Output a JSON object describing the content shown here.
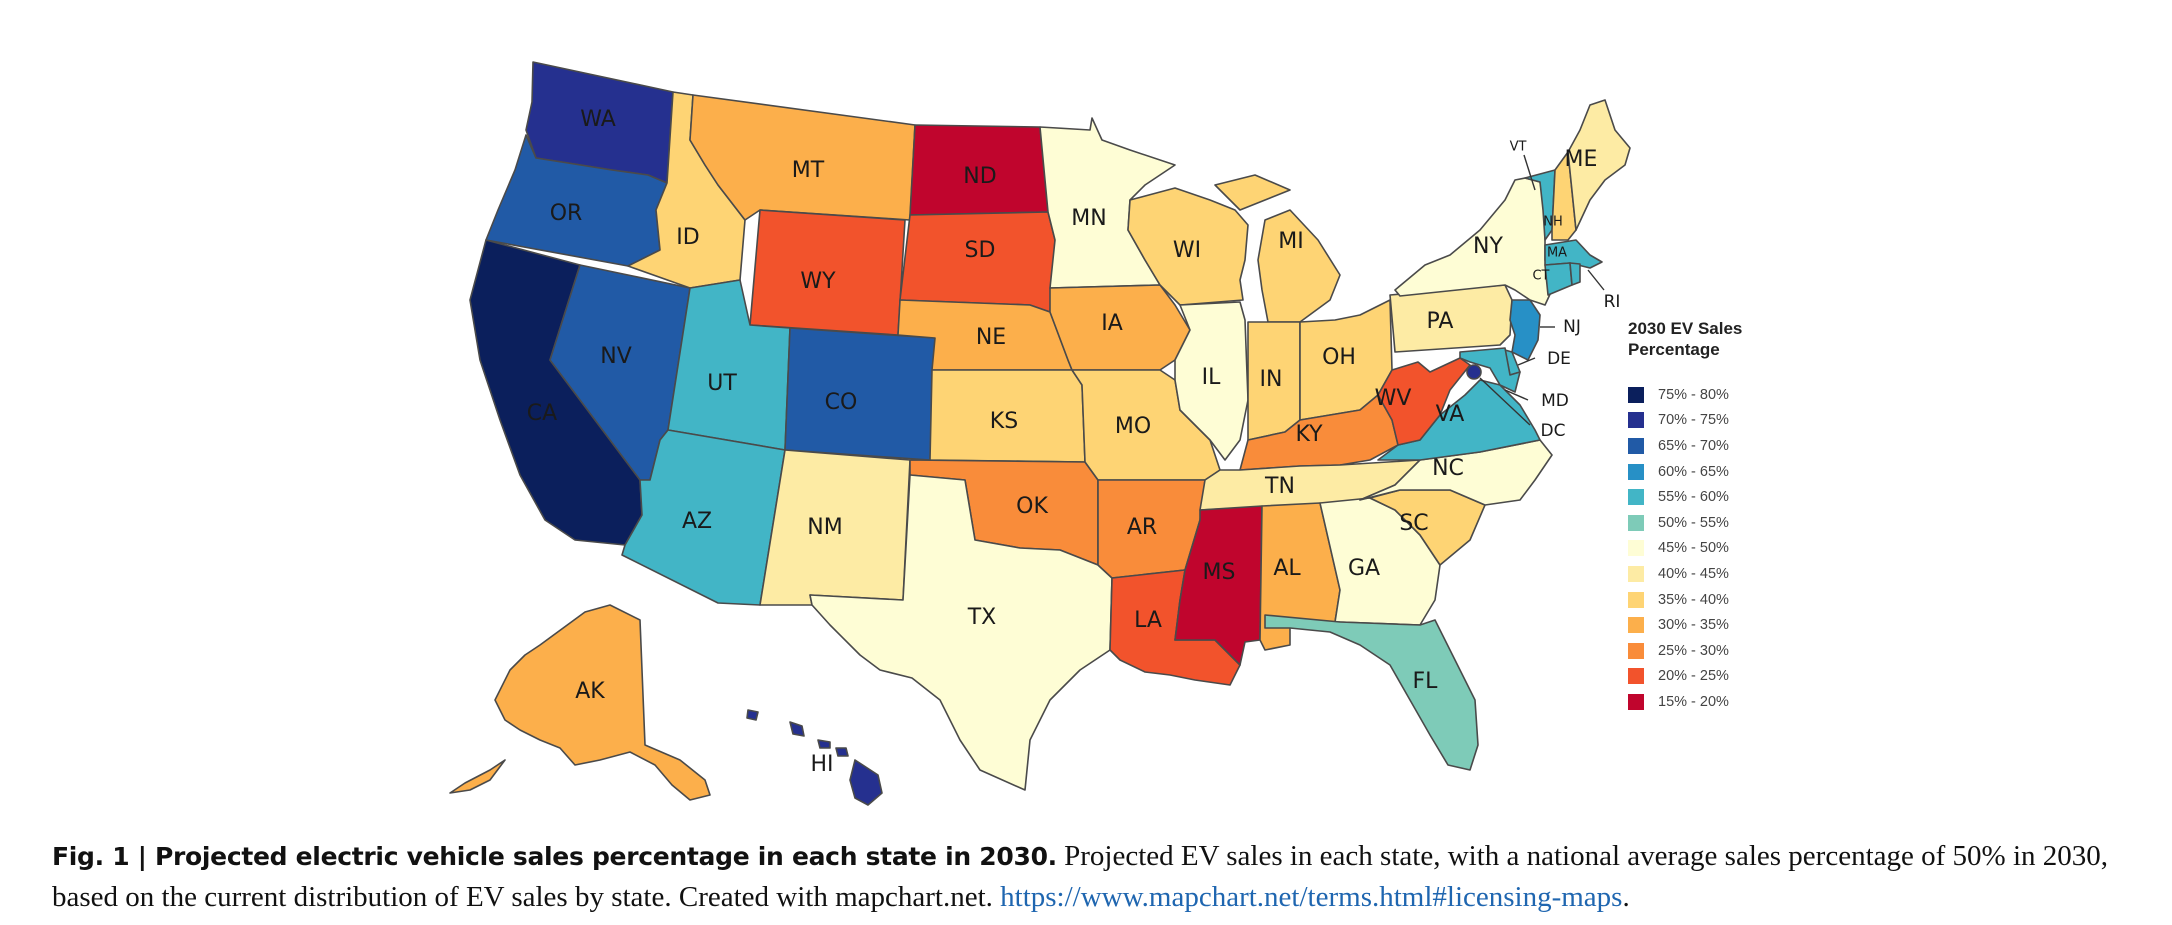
{
  "legend": {
    "title": "2030 EV Sales Percentage",
    "bins": [
      {
        "label": "75% - 80%",
        "color": "#0b1f5c"
      },
      {
        "label": "70% - 75%",
        "color": "#25308f"
      },
      {
        "label": "65% - 70%",
        "color": "#215aa6"
      },
      {
        "label": "60% - 65%",
        "color": "#2790c6"
      },
      {
        "label": "55% - 60%",
        "color": "#42b5c6"
      },
      {
        "label": "50% - 55%",
        "color": "#7ecbb8"
      },
      {
        "label": "45% - 50%",
        "color": "#fefdd5"
      },
      {
        "label": "40% - 45%",
        "color": "#fdeba4"
      },
      {
        "label": "35% - 40%",
        "color": "#fed474"
      },
      {
        "label": "30% - 35%",
        "color": "#fcaf4b"
      },
      {
        "label": "25% - 30%",
        "color": "#f98c3a"
      },
      {
        "label": "20% - 25%",
        "color": "#f2532c"
      },
      {
        "label": "15% - 20%",
        "color": "#c0052d"
      }
    ]
  },
  "states": [
    {
      "abbr": "WA",
      "bin": "70% - 75%"
    },
    {
      "abbr": "OR",
      "bin": "65% - 70%"
    },
    {
      "abbr": "CA",
      "bin": "75% - 80%"
    },
    {
      "abbr": "NV",
      "bin": "65% - 70%"
    },
    {
      "abbr": "ID",
      "bin": "35% - 40%"
    },
    {
      "abbr": "MT",
      "bin": "30% - 35%"
    },
    {
      "abbr": "WY",
      "bin": "20% - 25%"
    },
    {
      "abbr": "UT",
      "bin": "55% - 60%"
    },
    {
      "abbr": "CO",
      "bin": "65% - 70%"
    },
    {
      "abbr": "AZ",
      "bin": "55% - 60%"
    },
    {
      "abbr": "NM",
      "bin": "40% - 45%"
    },
    {
      "abbr": "ND",
      "bin": "15% - 20%"
    },
    {
      "abbr": "SD",
      "bin": "20% - 25%"
    },
    {
      "abbr": "NE",
      "bin": "30% - 35%"
    },
    {
      "abbr": "KS",
      "bin": "35% - 40%"
    },
    {
      "abbr": "OK",
      "bin": "25% - 30%"
    },
    {
      "abbr": "TX",
      "bin": "45% - 50%"
    },
    {
      "abbr": "MN",
      "bin": "45% - 50%"
    },
    {
      "abbr": "IA",
      "bin": "30% - 35%"
    },
    {
      "abbr": "MO",
      "bin": "35% - 40%"
    },
    {
      "abbr": "AR",
      "bin": "25% - 30%"
    },
    {
      "abbr": "LA",
      "bin": "20% - 25%"
    },
    {
      "abbr": "WI",
      "bin": "35% - 40%"
    },
    {
      "abbr": "IL",
      "bin": "45% - 50%"
    },
    {
      "abbr": "MI",
      "bin": "35% - 40%"
    },
    {
      "abbr": "IN",
      "bin": "35% - 40%"
    },
    {
      "abbr": "OH",
      "bin": "35% - 40%"
    },
    {
      "abbr": "KY",
      "bin": "25% - 30%"
    },
    {
      "abbr": "TN",
      "bin": "40% - 45%"
    },
    {
      "abbr": "MS",
      "bin": "15% - 20%"
    },
    {
      "abbr": "AL",
      "bin": "30% - 35%"
    },
    {
      "abbr": "GA",
      "bin": "45% - 50%"
    },
    {
      "abbr": "FL",
      "bin": "50% - 55%"
    },
    {
      "abbr": "SC",
      "bin": "35% - 40%"
    },
    {
      "abbr": "NC",
      "bin": "45% - 50%"
    },
    {
      "abbr": "VA",
      "bin": "55% - 60%"
    },
    {
      "abbr": "WV",
      "bin": "20% - 25%"
    },
    {
      "abbr": "PA",
      "bin": "40% - 45%"
    },
    {
      "abbr": "NY",
      "bin": "45% - 50%"
    },
    {
      "abbr": "VT",
      "bin": "55% - 60%"
    },
    {
      "abbr": "NH",
      "bin": "35% - 40%"
    },
    {
      "abbr": "ME",
      "bin": "40% - 45%"
    },
    {
      "abbr": "MA",
      "bin": "55% - 60%"
    },
    {
      "abbr": "CT",
      "bin": "55% - 60%"
    },
    {
      "abbr": "RI",
      "bin": "55% - 60%"
    },
    {
      "abbr": "NJ",
      "bin": "60% - 65%"
    },
    {
      "abbr": "DE",
      "bin": "55% - 60%"
    },
    {
      "abbr": "MD",
      "bin": "55% - 60%"
    },
    {
      "abbr": "DC",
      "bin": "70% - 75%"
    },
    {
      "abbr": "AK",
      "bin": "30% - 35%"
    },
    {
      "abbr": "HI",
      "bin": "70% - 75%"
    }
  ],
  "caption": {
    "bold": "Fig. 1 | Projected electric vehicle sales percentage in each state in 2030.",
    "text": " Projected EV sales in each state, with a national average sales percentage of 50% in 2030, based on the current distribution of EV sales by state. Created with mapchart.net. ",
    "link": "https://www.mapchart.net/terms.html#licensing-maps",
    "end": "."
  }
}
